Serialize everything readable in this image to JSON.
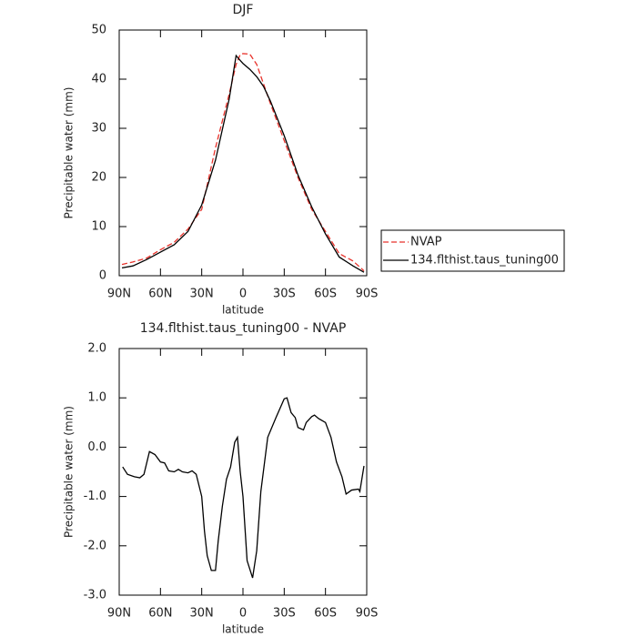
{
  "chart_data": [
    {
      "type": "line",
      "title": "DJF",
      "xlabel": "latitude",
      "ylabel": "Precipitable water (mm)",
      "x": [
        88,
        80,
        70,
        60,
        50,
        40,
        30,
        20,
        10,
        5,
        2,
        0,
        -5,
        -10,
        -15,
        -20,
        -30,
        -40,
        -50,
        -60,
        -70,
        -80,
        -88
      ],
      "series": [
        {
          "name": "NVAP",
          "color": "#e8322b",
          "linestyle": "dashed",
          "values": [
            2.3,
            2.8,
            3.6,
            5.3,
            6.8,
            9.5,
            13.5,
            26,
            37,
            43,
            45,
            45.2,
            45.1,
            43,
            39,
            35,
            27.5,
            20,
            13.5,
            9,
            4.5,
            3,
            1.0
          ]
        },
        {
          "name": "134.flthist.taus_tuning00",
          "color": "#000000",
          "linestyle": "solid",
          "values": [
            1.6,
            2.0,
            3.3,
            4.8,
            6.3,
            9.0,
            14.4,
            23.5,
            36,
            44.8,
            43.8,
            43.2,
            42,
            40.5,
            38.5,
            35.5,
            28.5,
            20.5,
            14,
            8.5,
            3.8,
            2,
            0.7
          ]
        }
      ],
      "xlim": [
        90,
        -90
      ],
      "xticks": [
        {
          "value": 90,
          "label": "90N"
        },
        {
          "value": 60,
          "label": "60N"
        },
        {
          "value": 30,
          "label": "30N"
        },
        0,
        {
          "value": -30,
          "label": "30S"
        },
        {
          "value": -60,
          "label": "60S"
        },
        {
          "value": -90,
          "label": "90S"
        }
      ],
      "ylim": [
        0,
        50
      ],
      "yticks": [
        0,
        10,
        20,
        30,
        40,
        50
      ],
      "legend": "outside-right"
    },
    {
      "type": "line",
      "title": "134.flthist.taus_tuning00 - NVAP",
      "xlabel": "latitude",
      "ylabel": "Precipitable water (mm)",
      "x": [
        87.5,
        84,
        79,
        75,
        72,
        68,
        64,
        60,
        57,
        54,
        50,
        47,
        44,
        40,
        37,
        34,
        30,
        28,
        26,
        23,
        20,
        18,
        15,
        12,
        9,
        6,
        4,
        2,
        0,
        -3,
        -7,
        -10,
        -13,
        -18,
        -24,
        -30,
        -32,
        -35,
        -38,
        -40,
        -44,
        -46,
        -50,
        -52,
        -55,
        -60,
        -64,
        -68,
        -72,
        -75,
        -79,
        -84,
        -85,
        -88
      ],
      "values": [
        -0.4,
        -0.55,
        -0.6,
        -0.62,
        -0.55,
        -0.09,
        -0.15,
        -0.3,
        -0.32,
        -0.48,
        -0.5,
        -0.45,
        -0.5,
        -0.52,
        -0.48,
        -0.55,
        -1.0,
        -1.7,
        -2.2,
        -2.5,
        -2.5,
        -1.9,
        -1.2,
        -0.65,
        -0.4,
        0.1,
        0.2,
        -0.5,
        -1.0,
        -2.3,
        -2.65,
        -2.1,
        -0.9,
        0.2,
        0.6,
        0.98,
        1.0,
        0.7,
        0.6,
        0.4,
        0.35,
        0.5,
        0.62,
        0.65,
        0.58,
        0.5,
        0.2,
        -0.3,
        -0.6,
        -0.95,
        -0.87,
        -0.85,
        -0.9,
        -0.38
      ],
      "color": "#000000",
      "xlim": [
        90,
        -90
      ],
      "xticks": [
        {
          "value": 90,
          "label": "90N"
        },
        {
          "value": 60,
          "label": "60N"
        },
        {
          "value": 30,
          "label": "30N"
        },
        0,
        {
          "value": -30,
          "label": "30S"
        },
        {
          "value": -60,
          "label": "60S"
        },
        {
          "value": -90,
          "label": "90S"
        }
      ],
      "ylim": [
        -3,
        2
      ],
      "yticks": [
        {
          "value": -3,
          "label": "-3.0"
        },
        {
          "value": -2,
          "label": "-2.0"
        },
        {
          "value": -1,
          "label": "-1.0"
        },
        {
          "value": 0,
          "label": "0.0"
        },
        {
          "value": 1,
          "label": "1.0"
        },
        {
          "value": 2,
          "label": "2.0"
        }
      ]
    }
  ]
}
